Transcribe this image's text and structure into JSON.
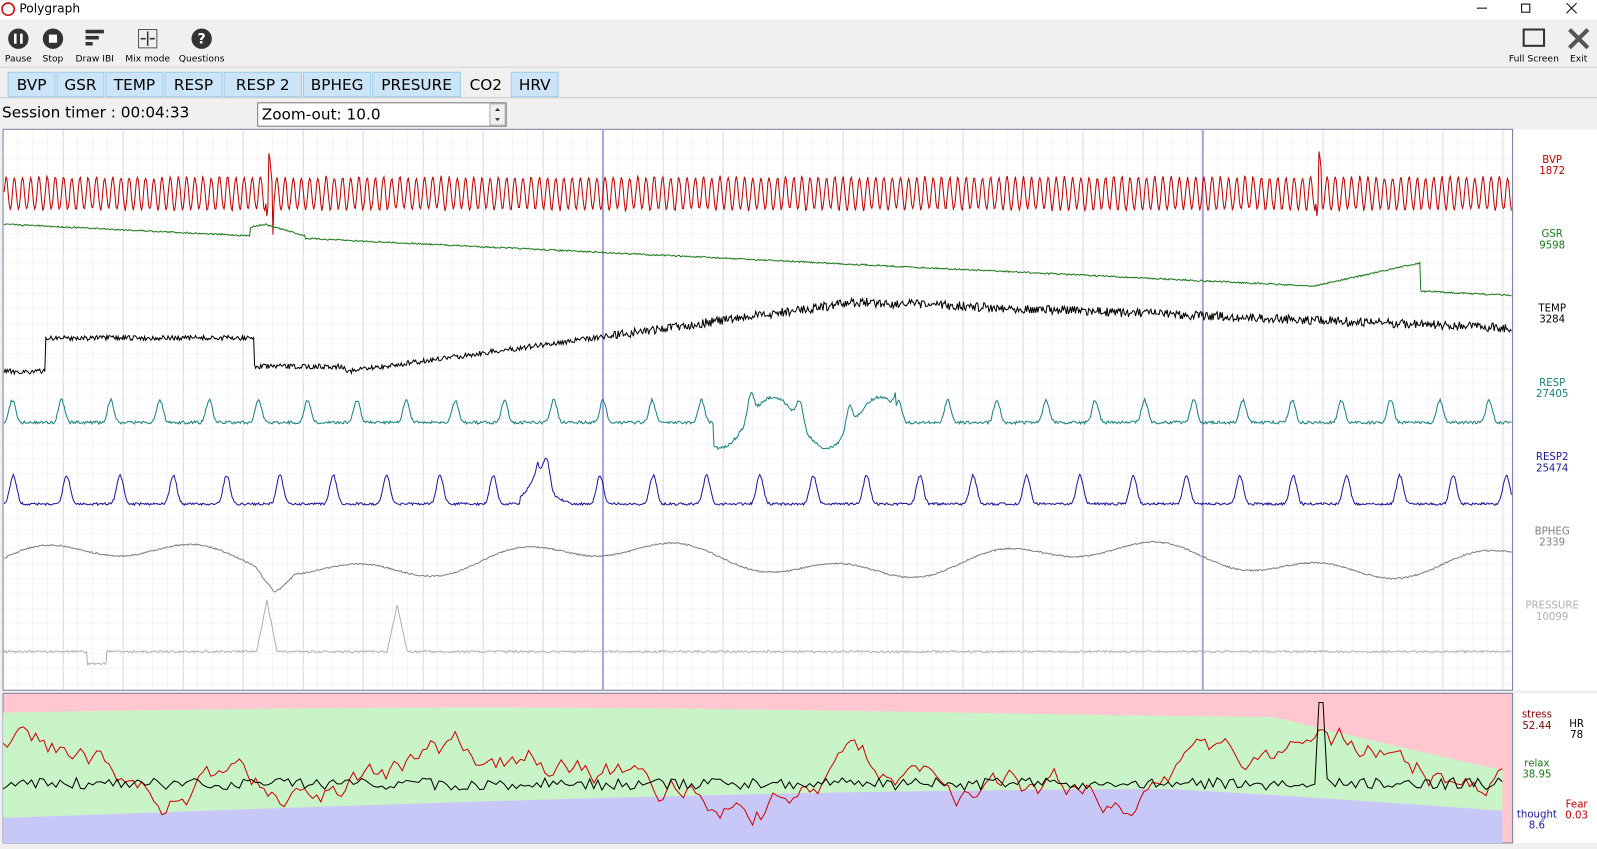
{
  "window": {
    "title": "Polygraph"
  },
  "toolbar": {
    "buttons": [
      "Pause",
      "Stop",
      "Draw IBI",
      "Mix mode",
      "Questions"
    ],
    "right_buttons": [
      "Full Screen",
      "Exit"
    ]
  },
  "tabs": [
    "BVP",
    "GSR",
    "TEMP",
    "RESP",
    "RESP 2",
    "BPHEG",
    "PRESURE",
    "CO2",
    "HRV"
  ],
  "selected_tab": 7,
  "session_timer": "Session timer : 00:04:33",
  "zoom": "Zoom-out: 10.0",
  "channels": [
    {
      "name": "BVP",
      "value": 1872,
      "color": "#c00000"
    },
    {
      "name": "GSR",
      "value": 9598,
      "color": "#1a7a1a"
    },
    {
      "name": "TEMP",
      "value": 3284,
      "color": "#000000"
    },
    {
      "name": "RESP",
      "value": 27405,
      "color": "#1a8080"
    },
    {
      "name": "RESP2",
      "value": 25474,
      "color": "#1a1a9a"
    },
    {
      "name": "BPHEG",
      "value": 2339,
      "color": "#808080"
    },
    {
      "name": "PRESSURE",
      "value": 10099,
      "color": "#b0b0b0"
    }
  ],
  "hrv_panel": {
    "stress": {
      "label": "stress",
      "value": 52.44,
      "color": "#800000"
    },
    "hr": {
      "label": "HR",
      "value": 78,
      "color": "#000000"
    },
    "relax": {
      "label": "relax",
      "value": 38.95,
      "color": "#1a7a1a"
    },
    "thought": {
      "label": "thought",
      "value": 8.6,
      "color": "#1a1a9a"
    },
    "fear": {
      "label": "Fear",
      "value": 0.03,
      "color": "#c00000"
    }
  }
}
